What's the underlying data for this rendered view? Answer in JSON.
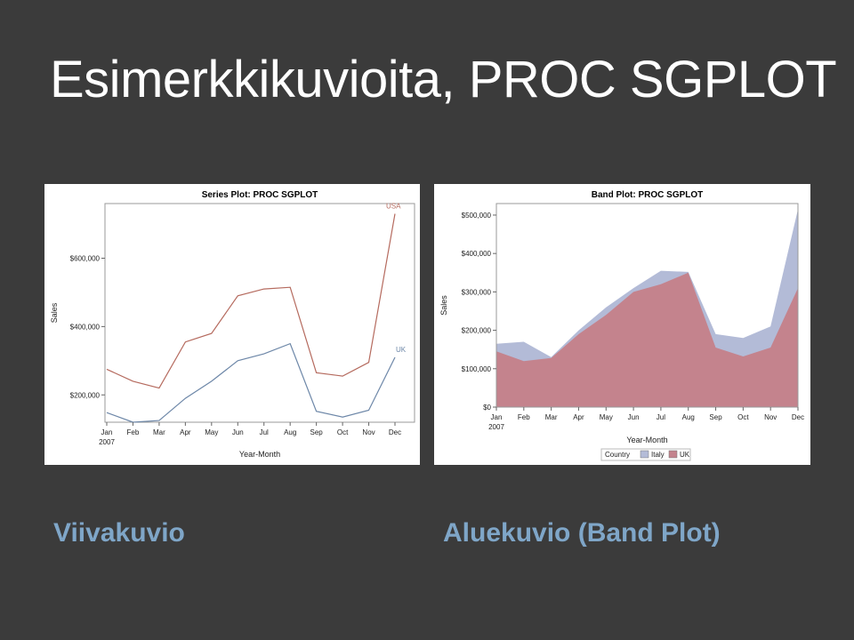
{
  "slide": {
    "title": "Esimerkkikuvioita, PROC SGPLOT",
    "caption_left": "Viivakuvio",
    "caption_right": "Aluekuvio (Band Plot)"
  },
  "colors": {
    "background": "#3b3b3b",
    "caption": "#7fa6c8",
    "usa_line": "#b56a5e",
    "uk_line": "#6d87a8",
    "italy_band": "#b3bbd7",
    "uk_band": "#c4838d"
  },
  "chart_data": [
    {
      "type": "line",
      "title": "Series Plot: PROC SGPLOT",
      "xlabel": "Year-Month",
      "ylabel": "Sales",
      "categories": [
        "Jan",
        "Feb",
        "Mar",
        "Apr",
        "May",
        "Jun",
        "Jul",
        "Aug",
        "Sep",
        "Oct",
        "Nov",
        "Dec"
      ],
      "first_tick_sublabel": "2007",
      "yticks": [
        200000,
        400000,
        600000
      ],
      "ytick_labels": [
        "$200,000",
        "$400,000",
        "$600,000"
      ],
      "ylim": [
        120000,
        760000
      ],
      "grid": false,
      "series": [
        {
          "name": "USA",
          "values": [
            275000,
            240000,
            220000,
            355000,
            380000,
            490000,
            510000,
            515000,
            265000,
            255000,
            295000,
            730000
          ]
        },
        {
          "name": "UK",
          "values": [
            148000,
            120000,
            125000,
            190000,
            240000,
            300000,
            320000,
            350000,
            152000,
            135000,
            155000,
            310000
          ]
        }
      ]
    },
    {
      "type": "area",
      "title": "Band Plot: PROC SGPLOT",
      "xlabel": "Year-Month",
      "ylabel": "Sales",
      "categories": [
        "Jan",
        "Feb",
        "Mar",
        "Apr",
        "May",
        "Jun",
        "Jul",
        "Aug",
        "Sep",
        "Oct",
        "Nov",
        "Dec"
      ],
      "first_tick_sublabel": "2007",
      "yticks": [
        0,
        100000,
        200000,
        300000,
        400000,
        500000
      ],
      "ytick_labels": [
        "$0",
        "$100,000",
        "$200,000",
        "$300,000",
        "$400,000",
        "$500,000"
      ],
      "ylim": [
        0,
        530000
      ],
      "grid": false,
      "legend": {
        "title": "Country",
        "position": "bottom"
      },
      "series": [
        {
          "name": "Italy",
          "values": [
            165000,
            170000,
            130000,
            200000,
            260000,
            310000,
            355000,
            352000,
            190000,
            180000,
            210000,
            515000
          ]
        },
        {
          "name": "UK",
          "values": [
            145000,
            120000,
            128000,
            190000,
            240000,
            300000,
            320000,
            350000,
            155000,
            132000,
            155000,
            310000
          ]
        }
      ]
    }
  ]
}
